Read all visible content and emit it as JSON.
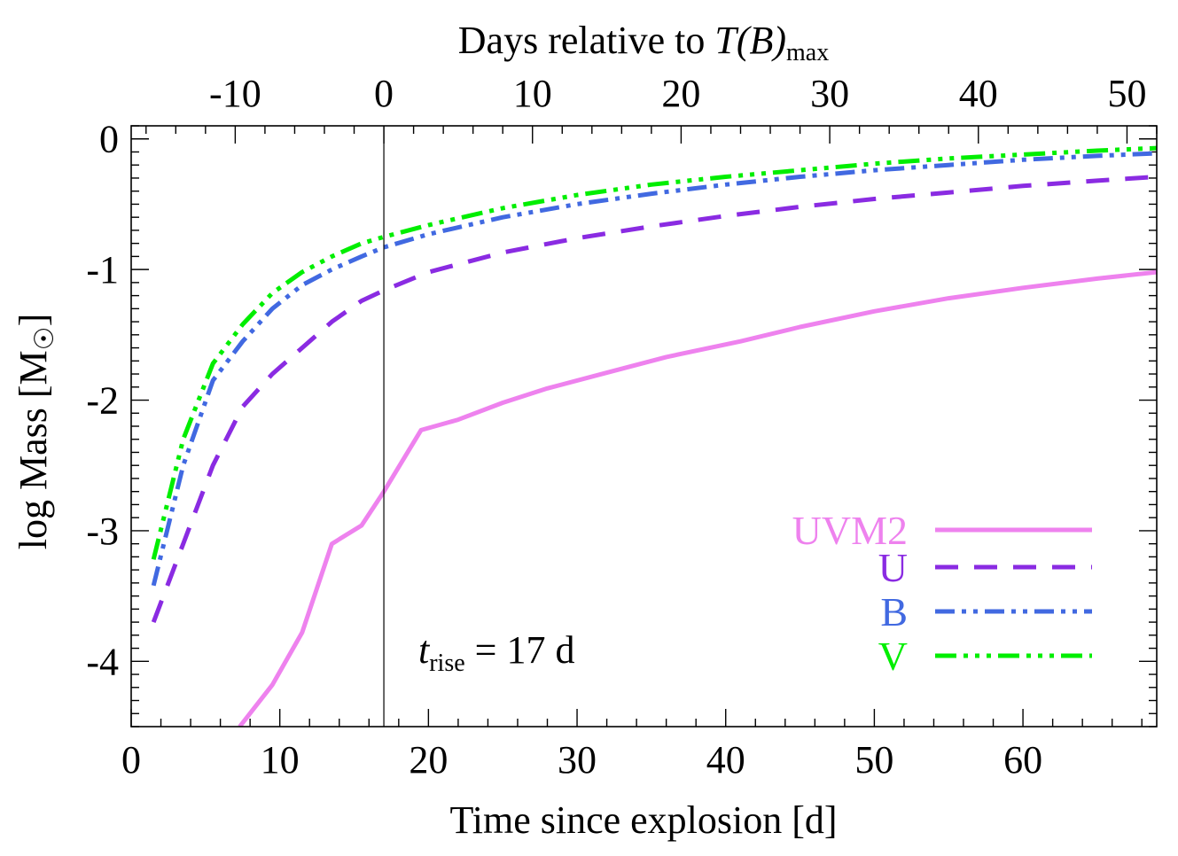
{
  "chart_data": {
    "type": "line",
    "xlabel": "Time since explosion [d]",
    "ylabel_main": "log Mass [M",
    "ylabel_close": "]",
    "top_xlabel_main": "Days relative to ",
    "top_xlabel_italic": "T(B)",
    "top_xlabel_sub": "max",
    "annotation": {
      "t": "t",
      "sub": "rise",
      "rest": " = 17 d"
    },
    "xlim": [
      0,
      69
    ],
    "ylim": [
      -4.5,
      0.1
    ],
    "top_axis_offset_days": 17,
    "vline_x": 17,
    "x_ticks": [
      0,
      10,
      20,
      30,
      40,
      50,
      60
    ],
    "x_tick_labels": [
      "0",
      "10",
      "20",
      "30",
      "40",
      "50",
      "60"
    ],
    "top_ticks": [
      -10,
      0,
      10,
      20,
      30,
      40,
      50
    ],
    "top_tick_labels": [
      "-10",
      "0",
      "10",
      "20",
      "30",
      "40",
      "50"
    ],
    "y_ticks": [
      0,
      -1,
      -2,
      -3,
      -4
    ],
    "y_tick_labels": [
      "0",
      "-1",
      "-2",
      "-3",
      "-4"
    ],
    "legend_position": "lower-right",
    "series": [
      {
        "name": "UVM2",
        "color": "#ee82ee",
        "dash": "solid",
        "x": [
          7.3,
          9.5,
          11.5,
          13.5,
          15.5,
          17.0,
          19.5,
          22.0,
          25.0,
          28.0,
          32.0,
          36.0,
          41.0,
          45.0,
          50.0,
          55.0,
          60.0,
          65.0,
          69.0
        ],
        "y": [
          -4.5,
          -4.18,
          -3.78,
          -3.1,
          -2.96,
          -2.7,
          -2.23,
          -2.15,
          -2.02,
          -1.91,
          -1.79,
          -1.67,
          -1.55,
          -1.44,
          -1.32,
          -1.22,
          -1.14,
          -1.07,
          -1.02
        ]
      },
      {
        "name": "U",
        "color": "#8a2be2",
        "dash": "dash",
        "x": [
          1.5,
          3.5,
          5.5,
          7.5,
          9.5,
          11.5,
          13.5,
          15.5,
          17.0,
          20.0,
          25.0,
          30.0,
          35.0,
          40.0,
          45.0,
          50.0,
          55.0,
          60.0,
          65.0,
          69.0
        ],
        "y": [
          -3.7,
          -3.1,
          -2.5,
          -2.05,
          -1.8,
          -1.6,
          -1.4,
          -1.24,
          -1.16,
          -1.02,
          -0.87,
          -0.76,
          -0.67,
          -0.59,
          -0.52,
          -0.46,
          -0.41,
          -0.36,
          -0.32,
          -0.29
        ]
      },
      {
        "name": "B",
        "color": "#4169e1",
        "dash": "dashdotdot",
        "x": [
          1.5,
          3.5,
          5.5,
          7.5,
          9.5,
          11.5,
          13.5,
          15.5,
          17.0,
          20.0,
          25.0,
          30.0,
          35.0,
          40.0,
          45.0,
          50.0,
          55.0,
          60.0,
          65.0,
          69.0
        ],
        "y": [
          -3.42,
          -2.5,
          -1.85,
          -1.55,
          -1.3,
          -1.12,
          -1.0,
          -0.9,
          -0.83,
          -0.73,
          -0.6,
          -0.5,
          -0.42,
          -0.35,
          -0.29,
          -0.24,
          -0.2,
          -0.16,
          -0.13,
          -0.11
        ]
      },
      {
        "name": "V",
        "color": "#00ee00",
        "dash": "dashdotdotdot",
        "x": [
          1.5,
          3.5,
          5.5,
          7.5,
          9.5,
          11.5,
          13.5,
          15.5,
          17.0,
          20.0,
          25.0,
          30.0,
          35.0,
          40.0,
          45.0,
          50.0,
          55.0,
          60.0,
          65.0,
          69.0
        ],
        "y": [
          -3.22,
          -2.3,
          -1.72,
          -1.42,
          -1.18,
          -1.02,
          -0.9,
          -0.8,
          -0.75,
          -0.66,
          -0.53,
          -0.43,
          -0.35,
          -0.29,
          -0.24,
          -0.19,
          -0.15,
          -0.12,
          -0.09,
          -0.07
        ]
      }
    ]
  }
}
